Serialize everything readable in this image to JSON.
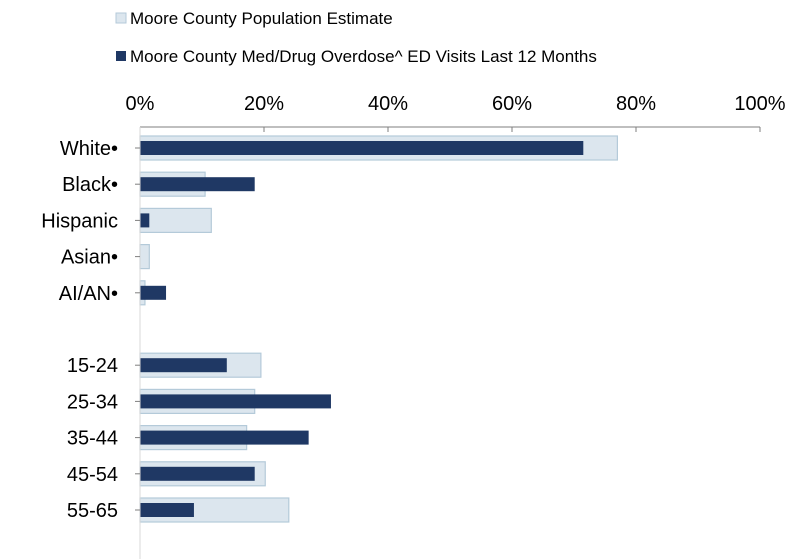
{
  "chart_data": {
    "type": "bar",
    "orientation": "horizontal",
    "title": "",
    "xlabel": "",
    "ylabel": "",
    "xlim": [
      0,
      100
    ],
    "x_ticks": [
      "0%",
      "20%",
      "40%",
      "60%",
      "80%",
      "100%"
    ],
    "x_tick_values": [
      0,
      20,
      40,
      60,
      80,
      100
    ],
    "grid": false,
    "legend_position": "top",
    "categories": [
      "White•",
      "Black•",
      "Hispanic",
      "Asian•",
      "AI/AN•",
      "",
      "15-24",
      "25-34",
      "35-44",
      "45-54",
      "55-65"
    ],
    "series": [
      {
        "name": "Moore County Population Estimate",
        "color": "#dce6ee",
        "border": "#b4cad9",
        "values": [
          77,
          10.5,
          11.5,
          1.5,
          0.8,
          null,
          19.5,
          18.5,
          17.2,
          20.2,
          24
        ]
      },
      {
        "name": "Moore County Med/Drug Overdose^ ED Visits Last 12 Months",
        "color": "#1f3864",
        "border": "#1f3864",
        "values": [
          71.5,
          18.5,
          1.5,
          0,
          4.2,
          null,
          14,
          30.8,
          27.2,
          18.5,
          8.7
        ]
      }
    ]
  }
}
